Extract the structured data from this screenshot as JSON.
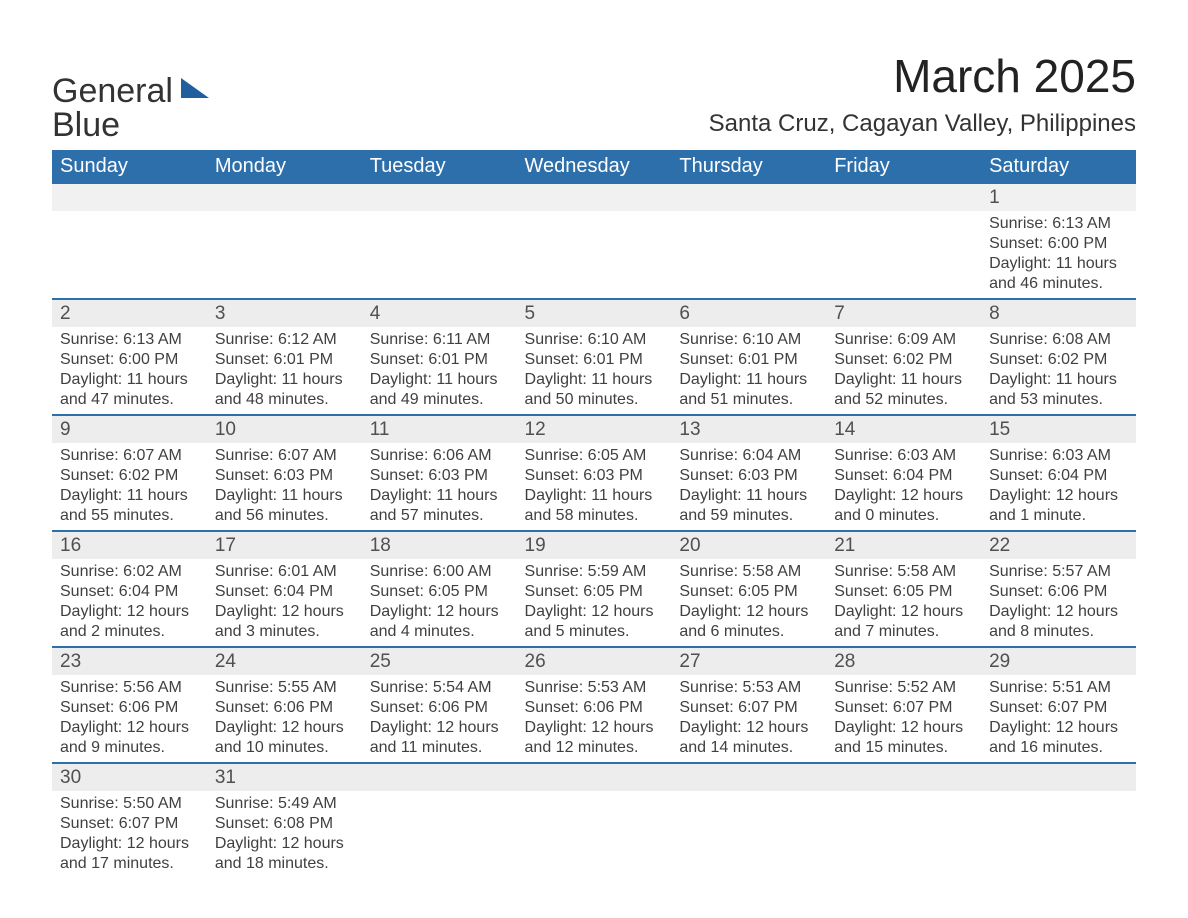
{
  "logo": {
    "line1": "General",
    "line2": "Blue",
    "triangle_color": "#1f5f9e",
    "text_color_dark": "#333333",
    "text_color_blue": "#1f5f9e"
  },
  "title": "March 2025",
  "location": "Santa Cruz, Cagayan Valley, Philippines",
  "colors": {
    "header_bg": "#2d6fab",
    "header_text": "#ffffff",
    "daynum_bg": "#ededed",
    "row_divider": "#2d6fab",
    "body_text": "#404040",
    "page_bg": "#ffffff"
  },
  "fonts": {
    "title_size_pt": 34,
    "location_size_pt": 18,
    "weekday_size_pt": 15,
    "daynum_size_pt": 14,
    "detail_size_pt": 12
  },
  "weekdays": [
    "Sunday",
    "Monday",
    "Tuesday",
    "Wednesday",
    "Thursday",
    "Friday",
    "Saturday"
  ],
  "weeks": [
    [
      null,
      null,
      null,
      null,
      null,
      null,
      {
        "n": "1",
        "sunrise": "Sunrise: 6:13 AM",
        "sunset": "Sunset: 6:00 PM",
        "daylight": "Daylight: 11 hours and 46 minutes."
      }
    ],
    [
      {
        "n": "2",
        "sunrise": "Sunrise: 6:13 AM",
        "sunset": "Sunset: 6:00 PM",
        "daylight": "Daylight: 11 hours and 47 minutes."
      },
      {
        "n": "3",
        "sunrise": "Sunrise: 6:12 AM",
        "sunset": "Sunset: 6:01 PM",
        "daylight": "Daylight: 11 hours and 48 minutes."
      },
      {
        "n": "4",
        "sunrise": "Sunrise: 6:11 AM",
        "sunset": "Sunset: 6:01 PM",
        "daylight": "Daylight: 11 hours and 49 minutes."
      },
      {
        "n": "5",
        "sunrise": "Sunrise: 6:10 AM",
        "sunset": "Sunset: 6:01 PM",
        "daylight": "Daylight: 11 hours and 50 minutes."
      },
      {
        "n": "6",
        "sunrise": "Sunrise: 6:10 AM",
        "sunset": "Sunset: 6:01 PM",
        "daylight": "Daylight: 11 hours and 51 minutes."
      },
      {
        "n": "7",
        "sunrise": "Sunrise: 6:09 AM",
        "sunset": "Sunset: 6:02 PM",
        "daylight": "Daylight: 11 hours and 52 minutes."
      },
      {
        "n": "8",
        "sunrise": "Sunrise: 6:08 AM",
        "sunset": "Sunset: 6:02 PM",
        "daylight": "Daylight: 11 hours and 53 minutes."
      }
    ],
    [
      {
        "n": "9",
        "sunrise": "Sunrise: 6:07 AM",
        "sunset": "Sunset: 6:02 PM",
        "daylight": "Daylight: 11 hours and 55 minutes."
      },
      {
        "n": "10",
        "sunrise": "Sunrise: 6:07 AM",
        "sunset": "Sunset: 6:03 PM",
        "daylight": "Daylight: 11 hours and 56 minutes."
      },
      {
        "n": "11",
        "sunrise": "Sunrise: 6:06 AM",
        "sunset": "Sunset: 6:03 PM",
        "daylight": "Daylight: 11 hours and 57 minutes."
      },
      {
        "n": "12",
        "sunrise": "Sunrise: 6:05 AM",
        "sunset": "Sunset: 6:03 PM",
        "daylight": "Daylight: 11 hours and 58 minutes."
      },
      {
        "n": "13",
        "sunrise": "Sunrise: 6:04 AM",
        "sunset": "Sunset: 6:03 PM",
        "daylight": "Daylight: 11 hours and 59 minutes."
      },
      {
        "n": "14",
        "sunrise": "Sunrise: 6:03 AM",
        "sunset": "Sunset: 6:04 PM",
        "daylight": "Daylight: 12 hours and 0 minutes."
      },
      {
        "n": "15",
        "sunrise": "Sunrise: 6:03 AM",
        "sunset": "Sunset: 6:04 PM",
        "daylight": "Daylight: 12 hours and 1 minute."
      }
    ],
    [
      {
        "n": "16",
        "sunrise": "Sunrise: 6:02 AM",
        "sunset": "Sunset: 6:04 PM",
        "daylight": "Daylight: 12 hours and 2 minutes."
      },
      {
        "n": "17",
        "sunrise": "Sunrise: 6:01 AM",
        "sunset": "Sunset: 6:04 PM",
        "daylight": "Daylight: 12 hours and 3 minutes."
      },
      {
        "n": "18",
        "sunrise": "Sunrise: 6:00 AM",
        "sunset": "Sunset: 6:05 PM",
        "daylight": "Daylight: 12 hours and 4 minutes."
      },
      {
        "n": "19",
        "sunrise": "Sunrise: 5:59 AM",
        "sunset": "Sunset: 6:05 PM",
        "daylight": "Daylight: 12 hours and 5 minutes."
      },
      {
        "n": "20",
        "sunrise": "Sunrise: 5:58 AM",
        "sunset": "Sunset: 6:05 PM",
        "daylight": "Daylight: 12 hours and 6 minutes."
      },
      {
        "n": "21",
        "sunrise": "Sunrise: 5:58 AM",
        "sunset": "Sunset: 6:05 PM",
        "daylight": "Daylight: 12 hours and 7 minutes."
      },
      {
        "n": "22",
        "sunrise": "Sunrise: 5:57 AM",
        "sunset": "Sunset: 6:06 PM",
        "daylight": "Daylight: 12 hours and 8 minutes."
      }
    ],
    [
      {
        "n": "23",
        "sunrise": "Sunrise: 5:56 AM",
        "sunset": "Sunset: 6:06 PM",
        "daylight": "Daylight: 12 hours and 9 minutes."
      },
      {
        "n": "24",
        "sunrise": "Sunrise: 5:55 AM",
        "sunset": "Sunset: 6:06 PM",
        "daylight": "Daylight: 12 hours and 10 minutes."
      },
      {
        "n": "25",
        "sunrise": "Sunrise: 5:54 AM",
        "sunset": "Sunset: 6:06 PM",
        "daylight": "Daylight: 12 hours and 11 minutes."
      },
      {
        "n": "26",
        "sunrise": "Sunrise: 5:53 AM",
        "sunset": "Sunset: 6:06 PM",
        "daylight": "Daylight: 12 hours and 12 minutes."
      },
      {
        "n": "27",
        "sunrise": "Sunrise: 5:53 AM",
        "sunset": "Sunset: 6:07 PM",
        "daylight": "Daylight: 12 hours and 14 minutes."
      },
      {
        "n": "28",
        "sunrise": "Sunrise: 5:52 AM",
        "sunset": "Sunset: 6:07 PM",
        "daylight": "Daylight: 12 hours and 15 minutes."
      },
      {
        "n": "29",
        "sunrise": "Sunrise: 5:51 AM",
        "sunset": "Sunset: 6:07 PM",
        "daylight": "Daylight: 12 hours and 16 minutes."
      }
    ],
    [
      {
        "n": "30",
        "sunrise": "Sunrise: 5:50 AM",
        "sunset": "Sunset: 6:07 PM",
        "daylight": "Daylight: 12 hours and 17 minutes."
      },
      {
        "n": "31",
        "sunrise": "Sunrise: 5:49 AM",
        "sunset": "Sunset: 6:08 PM",
        "daylight": "Daylight: 12 hours and 18 minutes."
      },
      null,
      null,
      null,
      null,
      null
    ]
  ]
}
